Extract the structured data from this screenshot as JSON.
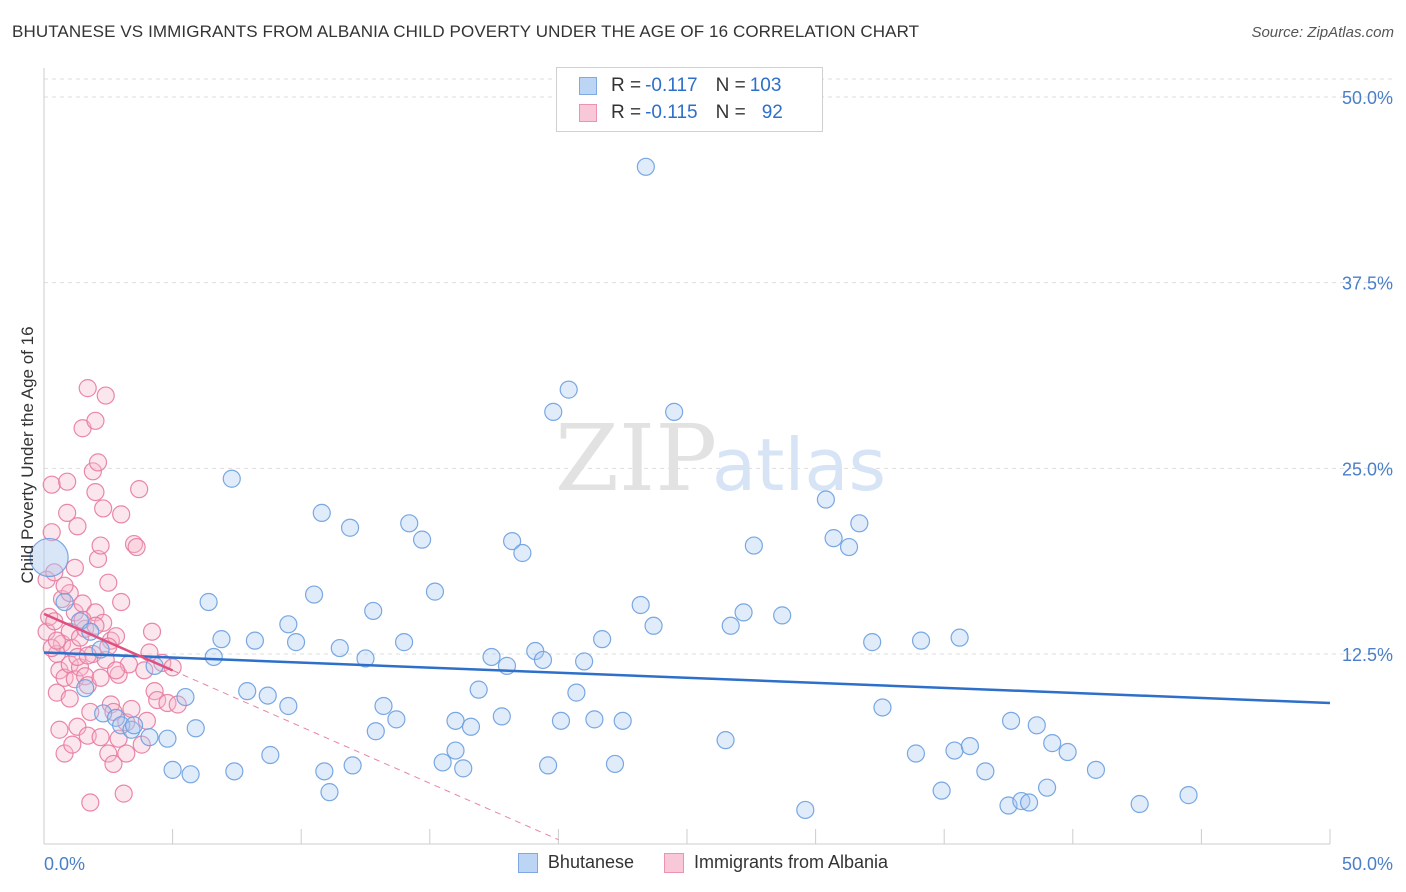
{
  "title": "BHUTANESE VS IMMIGRANTS FROM ALBANIA CHILD POVERTY UNDER THE AGE OF 16 CORRELATION CHART",
  "source": "Source: ZipAtlas.com",
  "watermark": {
    "zip": "ZIP",
    "atlas": "atlas"
  },
  "legend": {
    "rows": [
      {
        "r_label": "R = ",
        "r_value": "-0.117",
        "n_label": "N = ",
        "n_value": "103"
      },
      {
        "r_label": "R = ",
        "r_value": "-0.115",
        "n_label": "N = ",
        "n_value": "92"
      }
    ]
  },
  "colors": {
    "blue_fill": "#a9c8f0",
    "blue_stroke": "#6a9fe0",
    "blue_line": "#2d6fc9",
    "pink_fill": "#f6b7cc",
    "pink_stroke": "#e87aa0",
    "pink_line": "#e0507f",
    "axis_text": "#4a7fc8",
    "grid": "#dddddd"
  },
  "chart_data": {
    "type": "scatter",
    "title": "BHUTANESE VS IMMIGRANTS FROM ALBANIA CHILD POVERTY UNDER THE AGE OF 16 CORRELATION CHART",
    "xlabel": "",
    "ylabel": "Child Poverty Under the Age of 16",
    "xlim": [
      0,
      50
    ],
    "ylim": [
      0,
      52
    ],
    "x_tick_labels": [
      "0.0%",
      "50.0%"
    ],
    "y_ticks": [
      {
        "value": 12.5,
        "label": "12.5%"
      },
      {
        "value": 25.0,
        "label": "25.0%"
      },
      {
        "value": 37.5,
        "label": "37.5%"
      },
      {
        "value": 50.0,
        "label": "50.0%"
      }
    ],
    "series": [
      {
        "name": "Bhutanese",
        "color": "#a9c8f0",
        "trend": {
          "x": [
            0,
            50
          ],
          "y": [
            12.6,
            9.2
          ]
        },
        "points": [
          [
            0.2,
            19.0
          ],
          [
            0.8,
            16.0
          ],
          [
            1.4,
            14.7
          ],
          [
            1.8,
            14.0
          ],
          [
            2.2,
            12.8
          ],
          [
            1.6,
            10.2
          ],
          [
            2.3,
            8.5
          ],
          [
            2.8,
            8.2
          ],
          [
            3.0,
            7.7
          ],
          [
            3.4,
            7.4
          ],
          [
            3.5,
            7.7
          ],
          [
            4.1,
            6.9
          ],
          [
            4.8,
            6.8
          ],
          [
            4.3,
            11.7
          ],
          [
            5.0,
            4.7
          ],
          [
            5.7,
            4.4
          ],
          [
            5.5,
            9.6
          ],
          [
            5.9,
            7.5
          ],
          [
            6.4,
            16.0
          ],
          [
            6.6,
            12.3
          ],
          [
            6.9,
            13.5
          ],
          [
            7.4,
            4.6
          ],
          [
            7.3,
            24.3
          ],
          [
            7.9,
            10.0
          ],
          [
            8.2,
            13.4
          ],
          [
            8.7,
            9.7
          ],
          [
            8.8,
            5.7
          ],
          [
            9.5,
            14.5
          ],
          [
            9.5,
            9.0
          ],
          [
            9.8,
            13.3
          ],
          [
            10.5,
            16.5
          ],
          [
            10.8,
            22.0
          ],
          [
            10.9,
            4.6
          ],
          [
            11.1,
            3.2
          ],
          [
            11.5,
            12.9
          ],
          [
            11.9,
            21.0
          ],
          [
            12.0,
            5.0
          ],
          [
            12.5,
            12.2
          ],
          [
            12.8,
            15.4
          ],
          [
            12.9,
            7.3
          ],
          [
            13.2,
            9.0
          ],
          [
            13.7,
            8.1
          ],
          [
            14.0,
            13.3
          ],
          [
            14.2,
            21.3
          ],
          [
            14.7,
            20.2
          ],
          [
            15.2,
            16.7
          ],
          [
            15.5,
            5.2
          ],
          [
            16.0,
            8.0
          ],
          [
            16.0,
            6.0
          ],
          [
            16.3,
            4.8
          ],
          [
            16.6,
            7.6
          ],
          [
            16.9,
            10.1
          ],
          [
            17.4,
            12.3
          ],
          [
            17.8,
            8.3
          ],
          [
            18.0,
            11.7
          ],
          [
            18.2,
            20.1
          ],
          [
            18.6,
            19.3
          ],
          [
            19.1,
            12.7
          ],
          [
            19.4,
            12.1
          ],
          [
            19.8,
            28.8
          ],
          [
            19.6,
            5.0
          ],
          [
            20.1,
            8.0
          ],
          [
            20.4,
            30.3
          ],
          [
            20.7,
            9.9
          ],
          [
            21.0,
            12.0
          ],
          [
            21.4,
            8.1
          ],
          [
            21.7,
            13.5
          ],
          [
            22.2,
            5.1
          ],
          [
            22.5,
            8.0
          ],
          [
            23.2,
            15.8
          ],
          [
            23.7,
            14.4
          ],
          [
            23.4,
            45.3
          ],
          [
            24.5,
            28.8
          ],
          [
            26.5,
            6.7
          ],
          [
            26.7,
            14.4
          ],
          [
            27.2,
            15.3
          ],
          [
            27.6,
            19.8
          ],
          [
            28.7,
            15.1
          ],
          [
            29.6,
            2.0
          ],
          [
            30.4,
            22.9
          ],
          [
            30.7,
            20.3
          ],
          [
            31.3,
            19.7
          ],
          [
            31.7,
            21.3
          ],
          [
            32.2,
            13.3
          ],
          [
            32.6,
            8.9
          ],
          [
            33.9,
            5.8
          ],
          [
            34.1,
            13.4
          ],
          [
            34.9,
            3.3
          ],
          [
            35.4,
            6.0
          ],
          [
            35.6,
            13.6
          ],
          [
            36.0,
            6.3
          ],
          [
            36.6,
            4.6
          ],
          [
            37.5,
            2.3
          ],
          [
            37.6,
            8.0
          ],
          [
            38.0,
            2.6
          ],
          [
            38.3,
            2.5
          ],
          [
            38.6,
            7.7
          ],
          [
            39.0,
            3.5
          ],
          [
            39.2,
            6.5
          ],
          [
            39.8,
            5.9
          ],
          [
            40.9,
            4.7
          ],
          [
            42.6,
            2.4
          ],
          [
            44.5,
            3.0
          ]
        ]
      },
      {
        "name": "Immigrants from Albania",
        "color": "#f6b7cc",
        "trend": {
          "x": [
            0,
            5
          ],
          "y": [
            15.2,
            11.4
          ]
        },
        "trend_extension": {
          "x": [
            5,
            20
          ],
          "y": [
            11.4,
            0.0
          ]
        },
        "points": [
          [
            0.1,
            17.5
          ],
          [
            0.1,
            14.0
          ],
          [
            0.2,
            15.0
          ],
          [
            0.3,
            20.7
          ],
          [
            0.3,
            23.9
          ],
          [
            0.4,
            18.0
          ],
          [
            0.4,
            14.7
          ],
          [
            0.5,
            12.5
          ],
          [
            0.5,
            9.9
          ],
          [
            0.6,
            11.4
          ],
          [
            0.6,
            7.4
          ],
          [
            0.7,
            16.2
          ],
          [
            0.7,
            13.2
          ],
          [
            0.8,
            10.9
          ],
          [
            0.8,
            5.8
          ],
          [
            0.9,
            24.1
          ],
          [
            0.9,
            22.0
          ],
          [
            1.0,
            16.6
          ],
          [
            1.0,
            14.0
          ],
          [
            1.0,
            11.8
          ],
          [
            1.1,
            6.4
          ],
          [
            1.1,
            12.9
          ],
          [
            1.2,
            18.3
          ],
          [
            1.2,
            15.3
          ],
          [
            1.2,
            10.8
          ],
          [
            1.3,
            21.1
          ],
          [
            1.3,
            7.6
          ],
          [
            1.4,
            13.6
          ],
          [
            1.4,
            11.6
          ],
          [
            1.5,
            27.7
          ],
          [
            1.5,
            15.9
          ],
          [
            1.6,
            14.2
          ],
          [
            1.6,
            11.0
          ],
          [
            1.7,
            30.4
          ],
          [
            1.7,
            10.4
          ],
          [
            1.7,
            7.0
          ],
          [
            1.8,
            2.5
          ],
          [
            1.8,
            8.6
          ],
          [
            1.9,
            24.8
          ],
          [
            1.9,
            12.5
          ],
          [
            2.0,
            28.2
          ],
          [
            2.0,
            23.4
          ],
          [
            2.0,
            15.3
          ],
          [
            2.1,
            25.4
          ],
          [
            2.1,
            18.9
          ],
          [
            2.2,
            19.8
          ],
          [
            2.2,
            10.9
          ],
          [
            2.3,
            22.3
          ],
          [
            2.3,
            14.6
          ],
          [
            2.4,
            29.9
          ],
          [
            2.4,
            12.1
          ],
          [
            2.5,
            17.3
          ],
          [
            2.5,
            5.8
          ],
          [
            2.6,
            9.1
          ],
          [
            2.6,
            13.4
          ],
          [
            2.7,
            8.6
          ],
          [
            2.7,
            5.1
          ],
          [
            2.8,
            13.7
          ],
          [
            2.9,
            11.1
          ],
          [
            2.9,
            6.8
          ],
          [
            3.0,
            21.9
          ],
          [
            3.0,
            16.0
          ],
          [
            3.1,
            3.1
          ],
          [
            3.2,
            7.9
          ],
          [
            3.2,
            5.8
          ],
          [
            3.3,
            11.8
          ],
          [
            3.4,
            8.8
          ],
          [
            3.5,
            19.9
          ],
          [
            3.6,
            19.7
          ],
          [
            3.7,
            23.6
          ],
          [
            3.8,
            6.4
          ],
          [
            3.9,
            11.4
          ],
          [
            4.0,
            8.0
          ],
          [
            4.1,
            12.6
          ],
          [
            4.2,
            14.0
          ],
          [
            4.3,
            10.0
          ],
          [
            4.4,
            9.4
          ],
          [
            4.6,
            11.9
          ],
          [
            4.8,
            9.2
          ],
          [
            5.0,
            11.6
          ],
          [
            0.3,
            12.9
          ],
          [
            0.5,
            13.4
          ],
          [
            0.8,
            17.1
          ],
          [
            1.0,
            9.5
          ],
          [
            1.3,
            12.3
          ],
          [
            1.5,
            14.8
          ],
          [
            1.7,
            12.4
          ],
          [
            2.0,
            14.4
          ],
          [
            2.2,
            6.9
          ],
          [
            2.5,
            13.0
          ],
          [
            2.8,
            11.4
          ],
          [
            5.2,
            9.1
          ]
        ]
      }
    ]
  }
}
